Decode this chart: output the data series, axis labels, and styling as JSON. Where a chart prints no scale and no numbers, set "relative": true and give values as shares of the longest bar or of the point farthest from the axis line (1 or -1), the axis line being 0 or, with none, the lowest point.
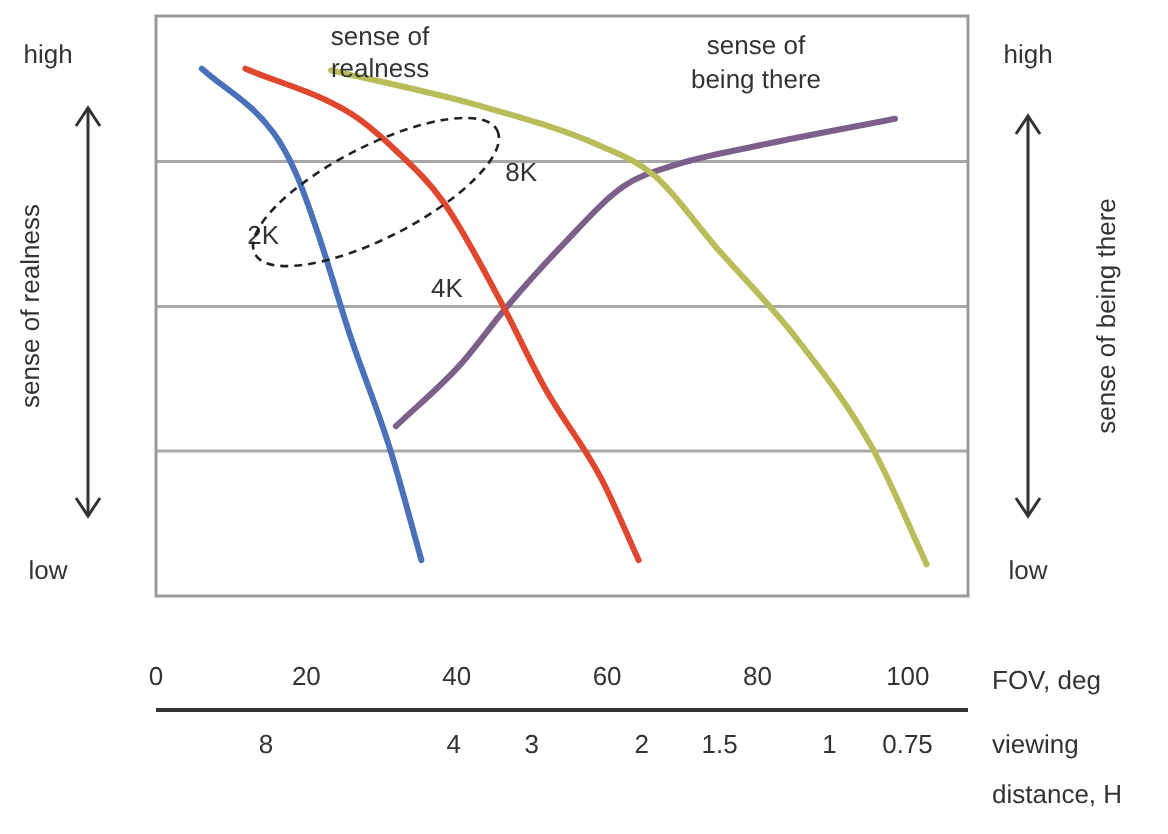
{
  "chart_data": {
    "type": "line",
    "relative": true,
    "xlabel": "FOV, deg",
    "x2label": "viewing distance, H",
    "ylabel": "sense of realness",
    "y2label": "sense of being there",
    "xlim": [
      0,
      108
    ],
    "xticks": [
      0,
      20,
      40,
      60,
      80,
      100
    ],
    "x2lim": [
      12,
      0.6
    ],
    "log": "x2",
    "x2ticks": [
      8,
      4,
      3,
      2,
      1.5,
      1,
      0.75
    ],
    "series": [
      {
        "name": "2K",
        "color": "#4a72b8",
        "x": [
          6.1,
          15.6,
          18.6,
          21.7,
          25.8,
          31.1,
          35.3
        ],
        "values": [
          1,
          0.879,
          0.802,
          0.681,
          0.495,
          0.28,
          0.068
        ]
      },
      {
        "name": "4K",
        "color": "#e0472f",
        "x": [
          11.9,
          25.8,
          31.9,
          38.3,
          45.6,
          51.7,
          59.2,
          64.2
        ],
        "values": [
          1,
          0.916,
          0.845,
          0.746,
          0.565,
          0.395,
          0.223,
          0.068
        ]
      },
      {
        "name": "8K",
        "color": "#b8bd5a",
        "x": [
          23.3,
          42.5,
          59.2,
          66.4,
          74.4,
          85,
          95.3,
          102.5
        ],
        "values": [
          0.997,
          0.932,
          0.853,
          0.796,
          0.663,
          0.492,
          0.28,
          0.06
        ]
      },
      {
        "color": "#7d5f8c",
        "x": [
          31.9,
          40.3,
          46.7,
          53.9,
          62.2,
          69.4,
          79.7,
          98.3
        ],
        "values": [
          0.322,
          0.436,
          0.549,
          0.663,
          0.777,
          0.819,
          0.853,
          0.905
        ]
      }
    ],
    "ref_lines": [
      {
        "axis": "y",
        "value": 0.275,
        "color": "#a8a8a8"
      },
      {
        "axis": "y",
        "value": 0.549,
        "color": "#a8a8a8"
      },
      {
        "axis": "y",
        "value": 0.824,
        "color": "#a8a8a8"
      }
    ],
    "annotations": [
      "sense of realness",
      "sense of being there",
      "high",
      "low",
      "high",
      "low"
    ],
    "legend": false,
    "marker": "none",
    "line_style": "solid",
    "grid": false
  }
}
